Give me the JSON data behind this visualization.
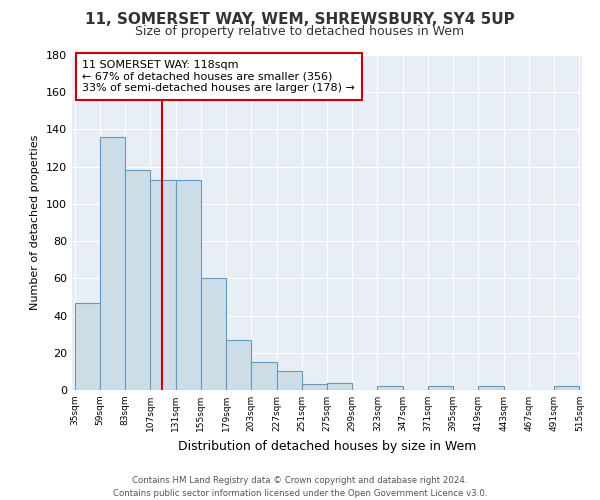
{
  "title1": "11, SOMERSET WAY, WEM, SHREWSBURY, SY4 5UP",
  "title2": "Size of property relative to detached houses in Wem",
  "xlabel": "Distribution of detached houses by size in Wem",
  "ylabel": "Number of detached properties",
  "bar_left_edges": [
    35,
    59,
    83,
    107,
    131,
    155,
    179,
    203,
    227,
    251,
    275,
    299,
    323,
    347,
    371,
    395,
    419,
    443,
    467,
    491
  ],
  "bar_heights": [
    47,
    136,
    118,
    113,
    113,
    60,
    27,
    15,
    10,
    3,
    4,
    0,
    2,
    0,
    2,
    0,
    2,
    0,
    0,
    2
  ],
  "bin_width": 24,
  "bar_color": "#ccdde8",
  "bar_edge_color": "#6699bb",
  "vertical_line_x": 118,
  "vertical_line_color": "#cc0000",
  "annotation_text_line1": "11 SOMERSET WAY: 118sqm",
  "annotation_text_line2": "← 67% of detached houses are smaller (356)",
  "annotation_text_line3": "33% of semi-detached houses are larger (178) →",
  "annotation_box_facecolor": "#ffffff",
  "annotation_box_edgecolor": "#cc0000",
  "ylim": [
    0,
    180
  ],
  "yticks": [
    0,
    20,
    40,
    60,
    80,
    100,
    120,
    140,
    160,
    180
  ],
  "xtick_labels": [
    "35sqm",
    "59sqm",
    "83sqm",
    "107sqm",
    "131sqm",
    "155sqm",
    "179sqm",
    "203sqm",
    "227sqm",
    "251sqm",
    "275sqm",
    "299sqm",
    "323sqm",
    "347sqm",
    "371sqm",
    "395sqm",
    "419sqm",
    "443sqm",
    "467sqm",
    "491sqm",
    "515sqm"
  ],
  "footer_text": "Contains HM Land Registry data © Crown copyright and database right 2024.\nContains public sector information licensed under the Open Government Licence v3.0.",
  "fig_bg_color": "#ffffff",
  "plot_bg_color": "#e8eef5",
  "grid_color": "#ffffff",
  "title1_fontsize": 11,
  "title2_fontsize": 9,
  "xlabel_fontsize": 9,
  "ylabel_fontsize": 8
}
